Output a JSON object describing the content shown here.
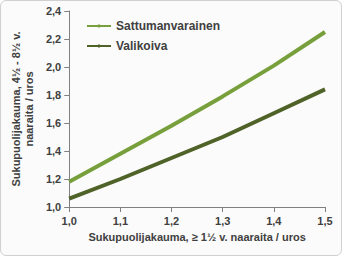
{
  "chart_data": {
    "type": "line",
    "x_label": "Sukupuolijakauma, ≥ 1½ v. naaraita / uros",
    "y_label": "Sukupuolijakauma, 4½ - 8½ v.\nnaaraita / uros",
    "x": [
      1.0,
      1.1,
      1.2,
      1.3,
      1.4,
      1.5
    ],
    "series": [
      {
        "name": "Sattumanvarainen",
        "color": "#77a03c",
        "values": [
          1.18,
          1.38,
          1.58,
          1.79,
          2.01,
          2.25
        ]
      },
      {
        "name": "Valikoiva",
        "color": "#4f6228",
        "values": [
          1.06,
          1.2,
          1.35,
          1.5,
          1.67,
          1.84
        ]
      }
    ],
    "xlim": [
      1.0,
      1.5
    ],
    "xticks": [
      {
        "value": 1.0,
        "label": "1,0"
      },
      {
        "value": 1.1,
        "label": "1,1"
      },
      {
        "value": 1.2,
        "label": "1,2"
      },
      {
        "value": 1.3,
        "label": "1,3"
      },
      {
        "value": 1.4,
        "label": "1,4"
      },
      {
        "value": 1.5,
        "label": "1,5"
      }
    ],
    "ylim": [
      1.0,
      2.4
    ],
    "yticks": [
      {
        "value": 1.0,
        "label": "1,0"
      },
      {
        "value": 1.2,
        "label": "1,2"
      },
      {
        "value": 1.4,
        "label": "1,4"
      },
      {
        "value": 1.6,
        "label": "1,6"
      },
      {
        "value": 1.8,
        "label": "1,8"
      },
      {
        "value": 2.0,
        "label": "2,0"
      },
      {
        "value": 2.2,
        "label": "2,2"
      },
      {
        "value": 2.4,
        "label": "2,4"
      }
    ],
    "grid": false,
    "legend": "top-left"
  }
}
